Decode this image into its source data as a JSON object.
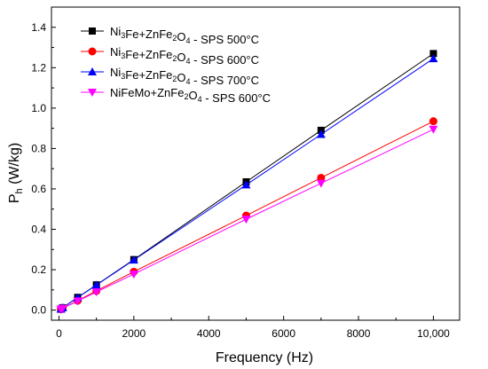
{
  "chart_data": {
    "type": "line",
    "xlabel": "Frequency (Hz)",
    "ylabel": {
      "main": "P",
      "sub": "h",
      "rest": " (W/kg)"
    },
    "xlim": [
      -200,
      10700
    ],
    "ylim": [
      -0.05,
      1.5
    ],
    "xticks": [
      {
        "value": 0,
        "label": "0"
      },
      {
        "value": 2000,
        "label": "2000"
      },
      {
        "value": 4000,
        "label": "4000"
      },
      {
        "value": 6000,
        "label": "6000"
      },
      {
        "value": 8000,
        "label": "8000"
      },
      {
        "value": 10000,
        "label": "10,000"
      }
    ],
    "yticks": [
      {
        "value": 0.0,
        "label": "0.0"
      },
      {
        "value": 0.2,
        "label": "0.2"
      },
      {
        "value": 0.4,
        "label": "0.4"
      },
      {
        "value": 0.6,
        "label": "0.6"
      },
      {
        "value": 0.8,
        "label": "0.8"
      },
      {
        "value": 1.0,
        "label": "1.0"
      },
      {
        "value": 1.2,
        "label": "1.2"
      },
      {
        "value": 1.4,
        "label": "1.4"
      }
    ],
    "grid": false,
    "legend_position": "top-left",
    "series": [
      {
        "name": "Ni3Fe+ZnFe2O4 - SPS 500°C",
        "legend_parts": [
          [
            "Ni",
            ""
          ],
          [
            "3",
            "sub"
          ],
          [
            "Fe+ZnFe",
            ""
          ],
          [
            "2",
            "sub"
          ],
          [
            "O",
            ""
          ],
          [
            "4",
            "sub"
          ],
          [
            " - SPS 500°C",
            ""
          ]
        ],
        "color": "#000000",
        "marker": "square",
        "x": [
          50,
          100,
          500,
          1000,
          2000,
          5000,
          7000,
          10000
        ],
        "y": [
          0.005,
          0.012,
          0.063,
          0.125,
          0.25,
          0.635,
          0.89,
          1.27
        ]
      },
      {
        "name": "Ni3Fe+ZnFe2O4 - SPS 600°C",
        "legend_parts": [
          [
            "Ni",
            ""
          ],
          [
            "3",
            "sub"
          ],
          [
            "Fe+ZnFe",
            ""
          ],
          [
            "2",
            "sub"
          ],
          [
            "O",
            ""
          ],
          [
            "4",
            "sub"
          ],
          [
            " - SPS 600°C",
            ""
          ]
        ],
        "color": "#ff0000",
        "marker": "circle",
        "x": [
          50,
          100,
          500,
          1000,
          2000,
          5000,
          7000,
          10000
        ],
        "y": [
          0.004,
          0.009,
          0.047,
          0.095,
          0.19,
          0.468,
          0.655,
          0.935
        ]
      },
      {
        "name": "Ni3Fe+ZnFe2O4 - SPS 700°C",
        "legend_parts": [
          [
            "Ni",
            ""
          ],
          [
            "3",
            "sub"
          ],
          [
            "Fe+ZnFe",
            ""
          ],
          [
            "2",
            "sub"
          ],
          [
            "O",
            ""
          ],
          [
            "4",
            "sub"
          ],
          [
            " - SPS 700°C",
            ""
          ]
        ],
        "color": "#0000ff",
        "marker": "triangle-up",
        "x": [
          50,
          100,
          500,
          1000,
          2000,
          5000,
          7000,
          10000
        ],
        "y": [
          0.005,
          0.012,
          0.062,
          0.124,
          0.248,
          0.62,
          0.87,
          1.245
        ]
      },
      {
        "name": "NiFeMo+ZnFe2O4 - SPS 600°C",
        "legend_parts": [
          [
            "NiFeMo+ZnFe",
            ""
          ],
          [
            "2",
            "sub"
          ],
          [
            "O",
            ""
          ],
          [
            "4",
            "sub"
          ],
          [
            " - SPS 600°C",
            ""
          ]
        ],
        "color": "#ff00ff",
        "marker": "triangle-down",
        "x": [
          50,
          100,
          500,
          1000,
          2000,
          5000,
          7000,
          10000
        ],
        "y": [
          0.004,
          0.009,
          0.045,
          0.09,
          0.178,
          0.45,
          0.628,
          0.895
        ]
      }
    ]
  }
}
